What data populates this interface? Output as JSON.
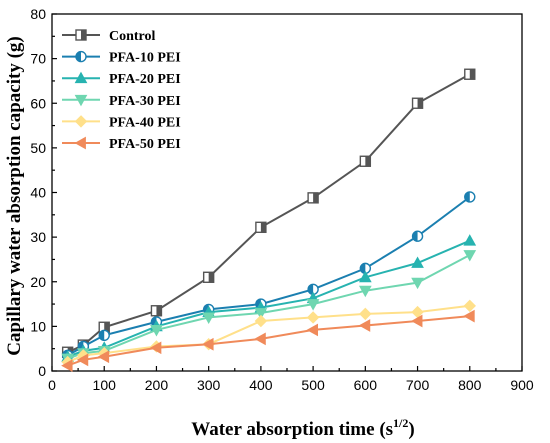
{
  "chart_data": {
    "type": "line",
    "title": "",
    "xlabel": "Water absorption time (s",
    "xlabel_sup": "1/2",
    "xlabel_suffix": ")",
    "ylabel": "Capillary water absorption capacity (g)",
    "xlim": [
      0,
      900
    ],
    "ylim": [
      0,
      80
    ],
    "xticks": [
      0,
      100,
      200,
      300,
      400,
      500,
      600,
      700,
      800,
      900
    ],
    "yticks": [
      0,
      10,
      20,
      30,
      40,
      50,
      60,
      70,
      80
    ],
    "legend_position": "top-left",
    "grid": false,
    "series": [
      {
        "name": "Control",
        "color": "#555555",
        "marker": "half-square",
        "points": [
          [
            30,
            4.2
          ],
          [
            60,
            5.8
          ],
          [
            100,
            9.8
          ],
          [
            200,
            13.5
          ],
          [
            300,
            21
          ],
          [
            400,
            32.2
          ],
          [
            500,
            38.8
          ],
          [
            600,
            47
          ],
          [
            700,
            60
          ],
          [
            800,
            66.5
          ]
        ]
      },
      {
        "name": "PFA-10 PEI",
        "color": "#1b7fb0",
        "marker": "half-circle",
        "points": [
          [
            30,
            3.5
          ],
          [
            60,
            5.5
          ],
          [
            100,
            8
          ],
          [
            200,
            11
          ],
          [
            300,
            13.8
          ],
          [
            400,
            15
          ],
          [
            500,
            18.3
          ],
          [
            600,
            23
          ],
          [
            700,
            30.2
          ],
          [
            800,
            39
          ]
        ]
      },
      {
        "name": "PFA-20 PEI",
        "color": "#27b3b0",
        "marker": "triangle-up",
        "points": [
          [
            30,
            3.2
          ],
          [
            60,
            4.5
          ],
          [
            100,
            5.2
          ],
          [
            200,
            10
          ],
          [
            300,
            13.2
          ],
          [
            400,
            14.2
          ],
          [
            500,
            16.3
          ],
          [
            600,
            21
          ],
          [
            700,
            24.2
          ],
          [
            800,
            29.2
          ]
        ]
      },
      {
        "name": "PFA-30 PEI",
        "color": "#6fd6b0",
        "marker": "triangle-down",
        "points": [
          [
            30,
            2.8
          ],
          [
            60,
            4
          ],
          [
            100,
            4.5
          ],
          [
            200,
            9.2
          ],
          [
            300,
            12
          ],
          [
            400,
            13
          ],
          [
            500,
            15
          ],
          [
            600,
            18
          ],
          [
            700,
            19.8
          ],
          [
            800,
            26
          ]
        ]
      },
      {
        "name": "PFA-40 PEI",
        "color": "#ffe08a",
        "marker": "diamond",
        "points": [
          [
            30,
            2
          ],
          [
            60,
            3.5
          ],
          [
            100,
            4
          ],
          [
            200,
            5.5
          ],
          [
            300,
            6
          ],
          [
            400,
            11.2
          ],
          [
            500,
            12
          ],
          [
            600,
            12.8
          ],
          [
            700,
            13.2
          ],
          [
            800,
            14.6
          ]
        ]
      },
      {
        "name": "PFA-50 PEI",
        "color": "#f08a5a",
        "marker": "triangle-left",
        "points": [
          [
            30,
            1.2
          ],
          [
            60,
            2.5
          ],
          [
            100,
            3.2
          ],
          [
            200,
            5.2
          ],
          [
            300,
            6
          ],
          [
            400,
            7.2
          ],
          [
            500,
            9.2
          ],
          [
            600,
            10.2
          ],
          [
            700,
            11.2
          ],
          [
            800,
            12.3
          ]
        ]
      }
    ]
  }
}
